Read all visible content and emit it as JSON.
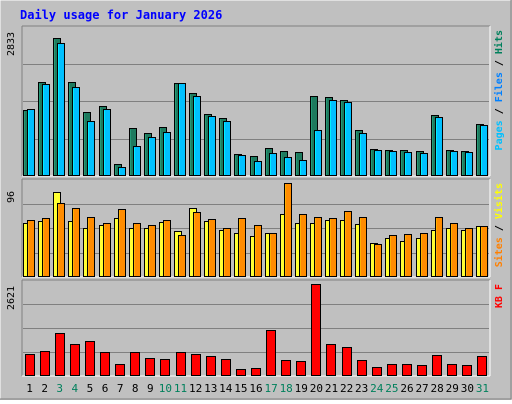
{
  "chart_data": {
    "type": "bar",
    "title": "Daily usage for January 2026",
    "title_color": "#0000ff",
    "background": "#c0c0c0",
    "grid": true,
    "categories": [
      "1",
      "2",
      "3",
      "4",
      "5",
      "6",
      "7",
      "8",
      "9",
      "10",
      "11",
      "12",
      "13",
      "14",
      "15",
      "16",
      "17",
      "18",
      "19",
      "20",
      "21",
      "22",
      "23",
      "24",
      "25",
      "26",
      "27",
      "28",
      "29",
      "30",
      "31"
    ],
    "weekend_days": [
      "3",
      "4",
      "10",
      "11",
      "17",
      "18",
      "24",
      "25",
      "31"
    ],
    "weekend_color": "#00805c",
    "panels": [
      {
        "id": "hits-files-pages",
        "ymax": 2833,
        "ymax_label": "2833",
        "legend": [
          {
            "text": "Pages",
            "color": "#00c0ff"
          },
          {
            "text": " / ",
            "color": "#000000"
          },
          {
            "text": "Files",
            "color": "#0080ff"
          },
          {
            "text": " / ",
            "color": "#000000"
          },
          {
            "text": "Hits",
            "color": "#00805c"
          }
        ],
        "series": [
          {
            "name": "Hits",
            "color": "#1e7a5e",
            "values": [
              1290,
              1830,
              2680,
              1830,
              1250,
              1360,
              230,
              940,
              840,
              950,
              1810,
              1620,
              1210,
              1120,
              430,
              380,
              540,
              480,
              470,
              1550,
              1530,
              1480,
              900,
              530,
              510,
              500,
              480,
              1180,
              500,
              480,
              1000
            ]
          },
          {
            "name": "Files",
            "color": "#00c0ff",
            "values": [
              1300,
              1780,
              2580,
              1730,
              1060,
              1300,
              180,
              590,
              760,
              850,
              1800,
              1550,
              1170,
              1060,
              400,
              300,
              450,
              360,
              320,
              900,
              1480,
              1440,
              830,
              500,
              480,
              460,
              440,
              1150,
              490,
              470,
              990
            ]
          }
        ]
      },
      {
        "id": "visits-sites",
        "ymax": 96,
        "ymax_label": "96",
        "legend": [
          {
            "text": "Sites",
            "color": "#ff8000"
          },
          {
            "text": " / ",
            "color": "#000000"
          },
          {
            "text": "Visits",
            "color": "#ffff00"
          }
        ],
        "series": [
          {
            "name": "Visits",
            "color": "#ffff30",
            "values": [
              55,
              57,
              87,
              57,
              50,
              53,
              60,
              50,
              50,
              56,
              47,
              70,
              57,
              48,
              45,
              42,
              45,
              64,
              55,
              55,
              58,
              58,
              54,
              35,
              40,
              37,
              40,
              48,
              50,
              48,
              52
            ]
          },
          {
            "name": "Sites",
            "color": "#ff8c00",
            "values": [
              58,
              60,
              76,
              70,
              61,
              55,
              69,
              55,
              53,
              58,
              43,
              66,
              59,
              50,
              60,
              53,
              45,
              96,
              64,
              61,
              60,
              67,
              61,
              34,
              43,
              44,
              45,
              61,
              55,
              50,
              52
            ]
          }
        ]
      },
      {
        "id": "kbytes",
        "ymax": 2621,
        "ymax_label": "2621",
        "legend": [
          {
            "text": "KB",
            "color": "#ff0000"
          },
          {
            "text": " ",
            "color": "#000000"
          },
          {
            "text": "F",
            "color": "#ff0000"
          }
        ],
        "series": [
          {
            "name": "KB F",
            "color": "#ff0000",
            "values": [
              620,
              700,
              1230,
              900,
              990,
              690,
              350,
              680,
              500,
              480,
              680,
              640,
              570,
              490,
              200,
              220,
              1300,
              450,
              430,
              2621,
              900,
              840,
              450,
              270,
              340,
              340,
              320,
              610,
              340,
              300,
              580
            ]
          }
        ]
      }
    ]
  }
}
